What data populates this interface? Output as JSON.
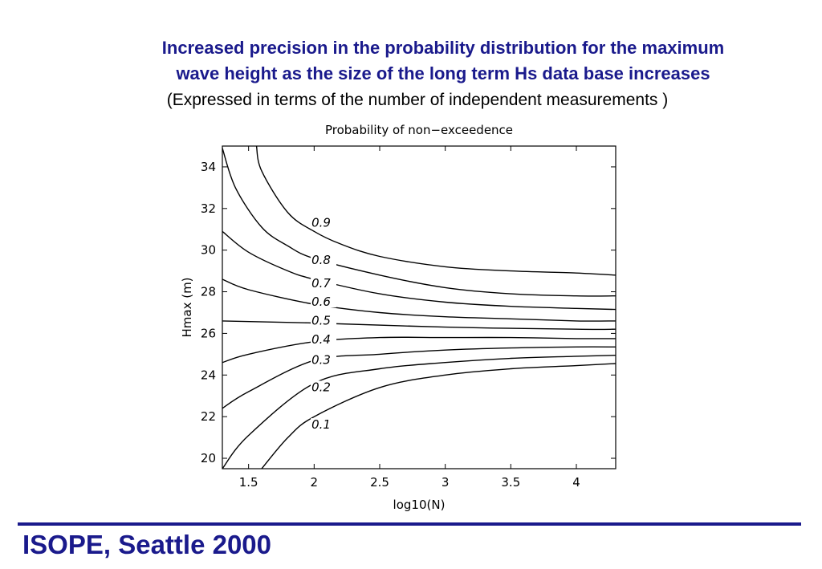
{
  "slide": {
    "heading_line1": "Increased precision in the probability distribution for the maximum",
    "heading_line2": "wave height as the size of the long term Hs data base increases",
    "subheading": "(Expressed in terms of the number of independent measurements )",
    "footer": "ISOPE, Seattle 2000",
    "accent_color": "#1a1a8c"
  },
  "chart_data": {
    "type": "line",
    "title": "Probability of non−exceedence",
    "xlabel": "log10(N)",
    "ylabel": "Hmax (m)",
    "xlim": [
      1.3,
      4.3
    ],
    "ylim": [
      19.5,
      35
    ],
    "xticks": [
      "1.5",
      "2",
      "2.5",
      "3",
      "3.5",
      "4"
    ],
    "yticks": [
      "20",
      "22",
      "24",
      "26",
      "28",
      "30",
      "32",
      "34"
    ],
    "grid": false,
    "series": [
      {
        "name": "0.9",
        "points": [
          [
            1.56,
            35
          ],
          [
            1.6,
            33.8
          ],
          [
            1.8,
            31.8
          ],
          [
            2.0,
            30.9
          ],
          [
            2.2,
            30.3
          ],
          [
            2.5,
            29.7
          ],
          [
            3.0,
            29.2
          ],
          [
            3.5,
            29.0
          ],
          [
            4.0,
            28.9
          ],
          [
            4.3,
            28.8
          ]
        ]
      },
      {
        "name": "0.8",
        "points": [
          [
            1.3,
            34.9
          ],
          [
            1.4,
            33.0
          ],
          [
            1.6,
            31.1
          ],
          [
            1.8,
            30.2
          ],
          [
            2.0,
            29.6
          ],
          [
            2.5,
            28.8
          ],
          [
            3.0,
            28.2
          ],
          [
            3.5,
            27.9
          ],
          [
            4.0,
            27.8
          ],
          [
            4.3,
            27.8
          ]
        ]
      },
      {
        "name": "0.7",
        "points": [
          [
            1.3,
            30.9
          ],
          [
            1.5,
            29.9
          ],
          [
            1.8,
            29.0
          ],
          [
            2.0,
            28.6
          ],
          [
            2.5,
            27.9
          ],
          [
            3.0,
            27.5
          ],
          [
            3.5,
            27.3
          ],
          [
            4.0,
            27.2
          ],
          [
            4.3,
            27.15
          ]
        ]
      },
      {
        "name": "0.6",
        "points": [
          [
            1.3,
            28.6
          ],
          [
            1.5,
            28.1
          ],
          [
            2.0,
            27.4
          ],
          [
            2.5,
            27.0
          ],
          [
            3.0,
            26.8
          ],
          [
            3.5,
            26.7
          ],
          [
            4.0,
            26.6
          ],
          [
            4.3,
            26.6
          ]
        ]
      },
      {
        "name": "0.5",
        "points": [
          [
            1.3,
            26.6
          ],
          [
            2.0,
            26.5
          ],
          [
            3.0,
            26.3
          ],
          [
            4.0,
            26.2
          ],
          [
            4.3,
            26.2
          ]
        ]
      },
      {
        "name": "0.4",
        "points": [
          [
            1.3,
            24.6
          ],
          [
            1.5,
            25.0
          ],
          [
            2.0,
            25.6
          ],
          [
            2.5,
            25.8
          ],
          [
            3.0,
            25.8
          ],
          [
            3.5,
            25.8
          ],
          [
            4.0,
            25.75
          ],
          [
            4.3,
            25.75
          ]
        ]
      },
      {
        "name": "0.3",
        "points": [
          [
            1.3,
            22.4
          ],
          [
            1.5,
            23.2
          ],
          [
            2.0,
            24.7
          ],
          [
            2.5,
            25.0
          ],
          [
            3.0,
            25.2
          ],
          [
            3.5,
            25.3
          ],
          [
            4.0,
            25.35
          ],
          [
            4.3,
            25.35
          ]
        ]
      },
      {
        "name": "0.2",
        "points": [
          [
            1.3,
            19.5
          ],
          [
            1.5,
            21.1
          ],
          [
            2.0,
            23.6
          ],
          [
            2.5,
            24.3
          ],
          [
            3.0,
            24.6
          ],
          [
            3.5,
            24.8
          ],
          [
            4.0,
            24.9
          ],
          [
            4.3,
            24.95
          ]
        ]
      },
      {
        "name": "0.1",
        "points": [
          [
            1.6,
            19.5
          ],
          [
            1.8,
            21.0
          ],
          [
            2.0,
            22.0
          ],
          [
            2.5,
            23.4
          ],
          [
            3.0,
            24.0
          ],
          [
            3.5,
            24.3
          ],
          [
            4.0,
            24.45
          ],
          [
            4.3,
            24.55
          ]
        ]
      }
    ],
    "contour_labels": [
      {
        "text": "0.9",
        "x": 1.98,
        "y": 31.2
      },
      {
        "text": "0.8",
        "x": 1.98,
        "y": 29.4
      },
      {
        "text": "0.7",
        "x": 1.98,
        "y": 28.3
      },
      {
        "text": "0.6",
        "x": 1.98,
        "y": 27.4
      },
      {
        "text": "0.5",
        "x": 1.98,
        "y": 26.5
      },
      {
        "text": "0.4",
        "x": 1.98,
        "y": 25.6
      },
      {
        "text": "0.3",
        "x": 1.98,
        "y": 24.6
      },
      {
        "text": "0.2",
        "x": 1.98,
        "y": 23.3
      },
      {
        "text": "0.1",
        "x": 1.98,
        "y": 21.5
      }
    ]
  }
}
